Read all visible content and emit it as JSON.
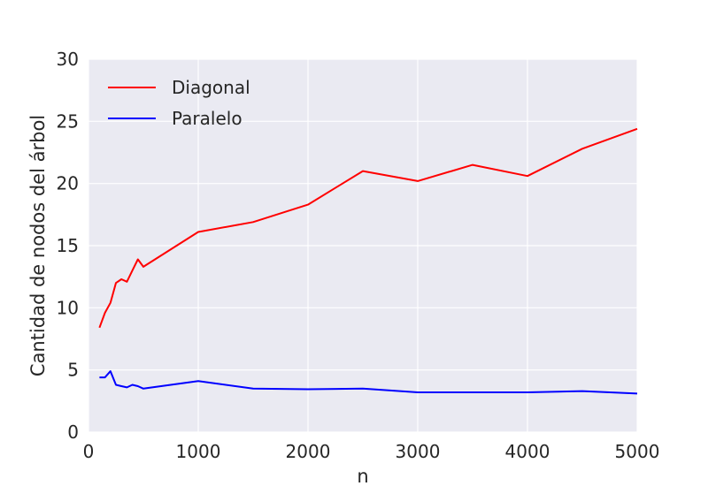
{
  "chart_data": {
    "type": "line",
    "title": "",
    "xlabel": "n",
    "ylabel": "Cantidad de nodos del árbol",
    "xlim": [
      0,
      5000
    ],
    "ylim": [
      0,
      30
    ],
    "xticks": [
      0,
      1000,
      2000,
      3000,
      4000,
      5000
    ],
    "yticks": [
      0,
      5,
      10,
      15,
      20,
      25,
      30
    ],
    "grid": true,
    "legend_position": "top-left",
    "background": "#eaeaf2",
    "series": [
      {
        "name": "Diagonal",
        "color": "#ff0000",
        "x": [
          100,
          150,
          200,
          250,
          300,
          350,
          400,
          450,
          500,
          1000,
          1500,
          2000,
          2500,
          3000,
          3500,
          4000,
          4500,
          5000
        ],
        "y": [
          8.4,
          9.6,
          10.4,
          12.0,
          12.3,
          12.1,
          13.0,
          13.9,
          13.3,
          16.1,
          16.9,
          18.3,
          21.0,
          20.2,
          21.5,
          20.6,
          22.8,
          24.4
        ]
      },
      {
        "name": "Paralelo",
        "color": "#0000ff",
        "x": [
          100,
          150,
          200,
          250,
          300,
          350,
          400,
          450,
          500,
          1000,
          1500,
          2000,
          2500,
          3000,
          3500,
          4000,
          4500,
          5000
        ],
        "y": [
          4.4,
          4.4,
          4.9,
          3.8,
          3.7,
          3.6,
          3.8,
          3.7,
          3.5,
          4.1,
          3.5,
          3.45,
          3.5,
          3.2,
          3.2,
          3.2,
          3.3,
          3.1
        ]
      }
    ]
  }
}
